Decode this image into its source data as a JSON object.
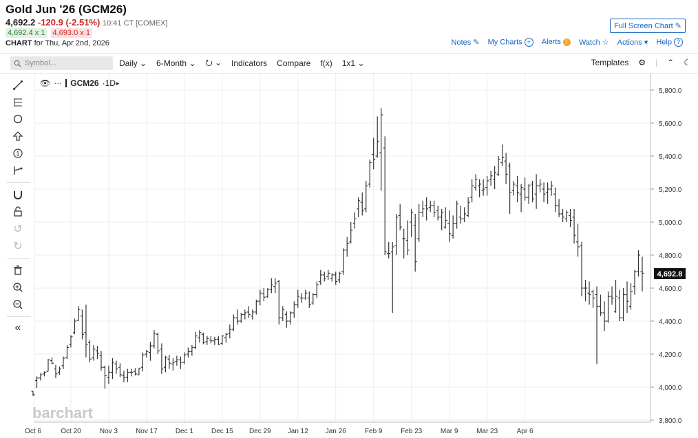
{
  "header": {
    "title": "Gold Jun '26 (GCM26)",
    "last": "4,692.2",
    "change": "-120.9 (-2.51%)",
    "time": "10:41 CT [COMEX]",
    "bid": "4,692.4 x 1",
    "ask": "4,693.0 x 1",
    "chart_label": "CHART",
    "chart_for": "for Thu, Apr 2nd, 2026",
    "full_screen": "Full Screen Chart"
  },
  "links": {
    "notes": "Notes",
    "my_charts": "My Charts",
    "alerts": "Alerts",
    "watch": "Watch",
    "actions": "Actions",
    "help": "Help"
  },
  "toolbar": {
    "search_placeholder": "Symbol...",
    "interval": "Daily",
    "range": "6-Month",
    "indicators": "Indicators",
    "compare": "Compare",
    "fx": "f(x)",
    "layout": "1x1",
    "templates": "Templates"
  },
  "legend": {
    "symbol": "GCM26",
    "interval": "1D"
  },
  "watermark": "barchart",
  "colors": {
    "accent": "#1565c0",
    "down": "#c62828",
    "up": "#2e7d32",
    "bar": "#333333"
  },
  "chart_data": {
    "type": "ohlc",
    "last_price_label": "4,692.8",
    "y_ticks": [
      3800,
      4000,
      4200,
      4400,
      4600,
      4800,
      5000,
      5200,
      5400,
      5600,
      5800
    ],
    "y_tick_labels": [
      "3,800.0",
      "4,000.0",
      "4,200.0",
      "4,400.0",
      "4,600.0",
      "4,800.0",
      "5,000.0",
      "5,200.0",
      "5,400.0",
      "5,600.0",
      "5,800.0"
    ],
    "ylim": [
      3800,
      5850
    ],
    "x_tick_labels": [
      "Oct 6",
      "Oct 20",
      "Nov 3",
      "Nov 17",
      "Dec 1",
      "Dec 15",
      "Dec 29",
      "Jan 12",
      "Jan 26",
      "Feb 9",
      "Feb 23",
      "Mar 9",
      "Mar 23",
      "Apr 6"
    ],
    "grid": true,
    "bars": [
      [
        3975,
        3975,
        3945,
        3955
      ],
      [
        4040,
        4065,
        3995,
        4055
      ],
      [
        4055,
        4085,
        4040,
        4075
      ],
      [
        4080,
        4095,
        4065,
        4090
      ],
      [
        4095,
        4170,
        4095,
        4165
      ],
      [
        4160,
        4180,
        4140,
        4145
      ],
      [
        4110,
        4135,
        4055,
        4080
      ],
      [
        4090,
        4125,
        4075,
        4110
      ],
      [
        4130,
        4185,
        4110,
        4175
      ],
      [
        4180,
        4255,
        4170,
        4240
      ],
      [
        4260,
        4315,
        4240,
        4305
      ],
      [
        4330,
        4415,
        4320,
        4400
      ],
      [
        4405,
        4490,
        4400,
        4470
      ],
      [
        4430,
        4470,
        4290,
        4320
      ],
      [
        4330,
        4500,
        4180,
        4260
      ],
      [
        4270,
        4285,
        4150,
        4170
      ],
      [
        4180,
        4255,
        4160,
        4230
      ],
      [
        4220,
        4250,
        4170,
        4205
      ],
      [
        4190,
        4220,
        4100,
        4120
      ],
      [
        4120,
        4130,
        3990,
        4070
      ],
      [
        4060,
        4130,
        4020,
        4090
      ],
      [
        4090,
        4175,
        4050,
        4150
      ],
      [
        4140,
        4160,
        4080,
        4110
      ],
      [
        4120,
        4145,
        4060,
        4075
      ],
      [
        4070,
        4100,
        4030,
        4060
      ],
      [
        4060,
        4110,
        4030,
        4090
      ],
      [
        4090,
        4110,
        4065,
        4090
      ],
      [
        4095,
        4115,
        4070,
        4080
      ],
      [
        4075,
        4115,
        4075,
        4115
      ],
      [
        4120,
        4210,
        4095,
        4195
      ],
      [
        4200,
        4225,
        4180,
        4215
      ],
      [
        4210,
        4275,
        4160,
        4250
      ],
      [
        4250,
        4345,
        4235,
        4325
      ],
      [
        4320,
        4330,
        4200,
        4220
      ],
      [
        4230,
        4265,
        4080,
        4110
      ],
      [
        4120,
        4190,
        4090,
        4180
      ],
      [
        4170,
        4195,
        4110,
        4145
      ],
      [
        4140,
        4175,
        4100,
        4150
      ],
      [
        4155,
        4190,
        4130,
        4165
      ],
      [
        4165,
        4185,
        4110,
        4150
      ],
      [
        4150,
        4210,
        4140,
        4195
      ],
      [
        4200,
        4240,
        4180,
        4215
      ],
      [
        4215,
        4255,
        4190,
        4240
      ],
      [
        4240,
        4335,
        4230,
        4310
      ],
      [
        4300,
        4345,
        4270,
        4330
      ],
      [
        4320,
        4330,
        4260,
        4270
      ],
      [
        4275,
        4310,
        4255,
        4295
      ],
      [
        4285,
        4310,
        4265,
        4280
      ],
      [
        4280,
        4305,
        4255,
        4290
      ],
      [
        4290,
        4310,
        4255,
        4260
      ],
      [
        4265,
        4315,
        4255,
        4310
      ],
      [
        4300,
        4330,
        4270,
        4320
      ],
      [
        4325,
        4380,
        4295,
        4350
      ],
      [
        4350,
        4440,
        4340,
        4420
      ],
      [
        4420,
        4470,
        4380,
        4400
      ],
      [
        4400,
        4450,
        4390,
        4440
      ],
      [
        4440,
        4470,
        4410,
        4450
      ],
      [
        4455,
        4490,
        4420,
        4440
      ],
      [
        4430,
        4470,
        4410,
        4455
      ],
      [
        4455,
        4530,
        4440,
        4520
      ],
      [
        4520,
        4590,
        4495,
        4570
      ],
      [
        4565,
        4600,
        4520,
        4545
      ],
      [
        4550,
        4600,
        4540,
        4590
      ],
      [
        4590,
        4660,
        4570,
        4620
      ],
      [
        4610,
        4660,
        4570,
        4630
      ],
      [
        4640,
        4650,
        4380,
        4420
      ],
      [
        4420,
        4490,
        4400,
        4470
      ],
      [
        4440,
        4460,
        4360,
        4400
      ],
      [
        4400,
        4460,
        4380,
        4450
      ],
      [
        4450,
        4520,
        4420,
        4500
      ],
      [
        4500,
        4590,
        4480,
        4550
      ],
      [
        4540,
        4570,
        4510,
        4540
      ],
      [
        4540,
        4590,
        4530,
        4570
      ],
      [
        4540,
        4580,
        4480,
        4500
      ],
      [
        4510,
        4570,
        4500,
        4560
      ],
      [
        4560,
        4640,
        4540,
        4620
      ],
      [
        4640,
        4710,
        4620,
        4680
      ],
      [
        4680,
        4700,
        4640,
        4660
      ],
      [
        4670,
        4710,
        4650,
        4690
      ],
      [
        4660,
        4690,
        4640,
        4680
      ],
      [
        4680,
        4700,
        4620,
        4640
      ],
      [
        4650,
        4700,
        4630,
        4690
      ],
      [
        4700,
        4840,
        4680,
        4830
      ],
      [
        4830,
        4910,
        4790,
        4870
      ],
      [
        4880,
        5000,
        4870,
        4950
      ],
      [
        4990,
        5060,
        4960,
        5020
      ],
      [
        5080,
        5150,
        5030,
        5130
      ],
      [
        5120,
        5180,
        5040,
        5070
      ],
      [
        5080,
        5250,
        5060,
        5220
      ],
      [
        5230,
        5380,
        5210,
        5360
      ],
      [
        5410,
        5510,
        5320,
        5380
      ],
      [
        5400,
        5640,
        5390,
        5490
      ],
      [
        5420,
        5690,
        5190,
        5650
      ],
      [
        5450,
        5520,
        4800,
        4820
      ],
      [
        4810,
        4880,
        4780,
        4810
      ],
      [
        4820,
        4880,
        4450,
        4850
      ],
      [
        4860,
        5050,
        4800,
        5030
      ],
      [
        5040,
        5110,
        4950,
        4970
      ],
      [
        4900,
        4960,
        4780,
        4900
      ],
      [
        4890,
        5010,
        4800,
        4830
      ],
      [
        5000,
        5080,
        4910,
        5060
      ],
      [
        4980,
        5050,
        4700,
        4760
      ],
      [
        4900,
        5110,
        4880,
        5060
      ],
      [
        5060,
        5130,
        5030,
        5080
      ],
      [
        5100,
        5150,
        5010,
        5080
      ],
      [
        5090,
        5130,
        5060,
        5100
      ],
      [
        5100,
        5130,
        5030,
        5060
      ],
      [
        5070,
        5100,
        5010,
        5030
      ],
      [
        5030,
        5080,
        4950,
        5060
      ],
      [
        4970,
        5090,
        4960,
        5010
      ],
      [
        4990,
        5070,
        4880,
        4930
      ],
      [
        4920,
        5040,
        4900,
        4990
      ],
      [
        4990,
        5130,
        4960,
        5110
      ],
      [
        5030,
        5100,
        4990,
        5020
      ],
      [
        5020,
        5090,
        5000,
        5050
      ],
      [
        5040,
        5150,
        5030,
        5120
      ],
      [
        5150,
        5260,
        5120,
        5220
      ],
      [
        5210,
        5290,
        5190,
        5260
      ],
      [
        5220,
        5260,
        5150,
        5230
      ],
      [
        5190,
        5260,
        5160,
        5200
      ],
      [
        5210,
        5280,
        5160,
        5250
      ],
      [
        5260,
        5310,
        5220,
        5280
      ],
      [
        5260,
        5340,
        5200,
        5300
      ],
      [
        5290,
        5400,
        5280,
        5380
      ],
      [
        5360,
        5470,
        5340,
        5390
      ],
      [
        5370,
        5420,
        5230,
        5290
      ],
      [
        5340,
        5360,
        5050,
        5180
      ],
      [
        5190,
        5250,
        5160,
        5230
      ],
      [
        5220,
        5280,
        5120,
        5180
      ],
      [
        5170,
        5230,
        5060,
        5210
      ],
      [
        5200,
        5270,
        5130,
        5150
      ],
      [
        5150,
        5230,
        5110,
        5220
      ],
      [
        5230,
        5250,
        5120,
        5140
      ],
      [
        5170,
        5290,
        5080,
        5220
      ],
      [
        5220,
        5260,
        5180,
        5230
      ],
      [
        5200,
        5240,
        5120,
        5170
      ],
      [
        5180,
        5240,
        5110,
        5200
      ],
      [
        5200,
        5250,
        5160,
        5220
      ],
      [
        5170,
        5210,
        5060,
        5100
      ],
      [
        5100,
        5140,
        5030,
        5050
      ],
      [
        5050,
        5080,
        5000,
        5030
      ],
      [
        5020,
        5070,
        5000,
        5060
      ],
      [
        5040,
        5080,
        4970,
        5010
      ],
      [
        5030,
        5080,
        4870,
        4920
      ],
      [
        4880,
        4990,
        4790,
        4850
      ],
      [
        4860,
        4880,
        4550,
        4600
      ],
      [
        4600,
        4650,
        4520,
        4600
      ],
      [
        4570,
        4640,
        4500,
        4560
      ],
      [
        4580,
        4590,
        4480,
        4540
      ],
      [
        4560,
        4610,
        4140,
        4490
      ],
      [
        4490,
        4560,
        4430,
        4450
      ],
      [
        4450,
        4520,
        4340,
        4400
      ],
      [
        4400,
        4580,
        4390,
        4550
      ],
      [
        4550,
        4610,
        4500,
        4540
      ],
      [
        4460,
        4650,
        4450,
        4550
      ],
      [
        4540,
        4590,
        4400,
        4420
      ],
      [
        4420,
        4600,
        4400,
        4560
      ],
      [
        4560,
        4640,
        4450,
        4520
      ],
      [
        4490,
        4630,
        4470,
        4580
      ],
      [
        4610,
        4710,
        4560,
        4700
      ],
      [
        4700,
        4830,
        4670,
        4800
      ],
      [
        4700,
        4790,
        4580,
        4690
      ]
    ]
  }
}
